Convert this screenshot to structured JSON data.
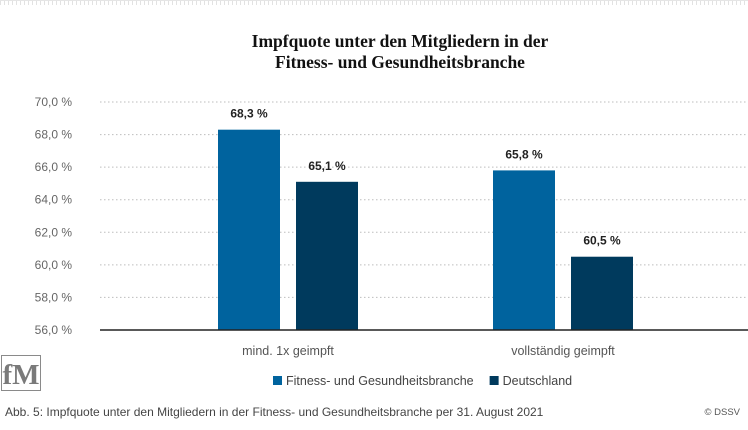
{
  "chart_data": {
    "type": "bar",
    "title_lines": [
      "Impfquote unter den Mitgliedern in der",
      "Fitness- und Gesundheitsbranche"
    ],
    "categories": [
      "mind. 1x geimpft",
      "vollständig geimpft"
    ],
    "series": [
      {
        "name": "Fitness- und Gesundheitsbranche",
        "values": [
          68.3,
          65.8
        ],
        "labels": [
          "68,3 %",
          "65,8 %"
        ],
        "color": "#00639e"
      },
      {
        "name": "Deutschland",
        "values": [
          65.1,
          60.5
        ],
        "labels": [
          "65,1 %",
          "60,5 %"
        ],
        "color": "#003a5d"
      }
    ],
    "y_ticks": [
      56,
      58,
      60,
      62,
      64,
      66,
      68,
      70
    ],
    "y_tick_labels": [
      "56,0 %",
      "58,0 %",
      "60,0 %",
      "62,0 %",
      "64,0 %",
      "66,0 %",
      "68,0 %",
      "70,0 %"
    ],
    "ylim": [
      56,
      70
    ],
    "grid": true,
    "legend_position": "bottom"
  },
  "logo_text": "fM",
  "caption": "Abb. 5: Impfquote unter den Mitgliedern in der Fitness- und Gesundheitsbranche per 31. August 2021",
  "copyright": "© DSSV"
}
